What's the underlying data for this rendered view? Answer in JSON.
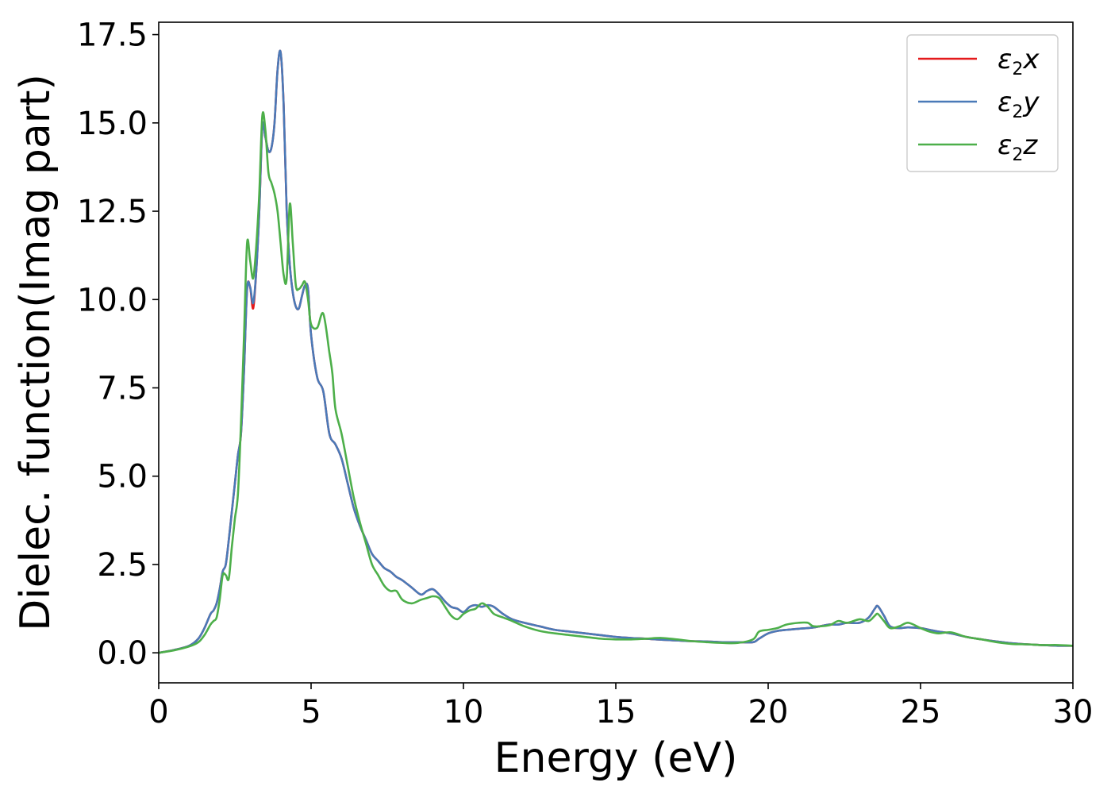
{
  "chart_data": {
    "type": "line",
    "xlabel": "Energy (eV)",
    "ylabel": "Dielec. function(Imag part)",
    "xlim": [
      0,
      30
    ],
    "ylim": [
      -0.85,
      17.85
    ],
    "xticks": [
      0,
      5,
      10,
      15,
      20,
      25,
      30
    ],
    "yticks": [
      0.0,
      2.5,
      5.0,
      7.5,
      10.0,
      12.5,
      15.0,
      17.5
    ],
    "xtick_labels": [
      "0",
      "5",
      "10",
      "15",
      "20",
      "25",
      "30"
    ],
    "ytick_labels": [
      "0.0",
      "2.5",
      "5.0",
      "7.5",
      "10.0",
      "12.5",
      "15.0",
      "17.5"
    ],
    "grid": false,
    "legend_position": "top-right",
    "series": [
      {
        "name": "ε₂x",
        "legend": {
          "base": "ε",
          "sub": "2",
          "var": "x"
        },
        "color": "#e41a1c",
        "x": [
          0,
          0.5,
          1.0,
          1.3,
          1.5,
          1.7,
          1.8,
          1.9,
          2.0,
          2.1,
          2.2,
          2.3,
          2.4,
          2.5,
          2.6,
          2.7,
          2.8,
          2.9,
          3.0,
          3.1,
          3.2,
          3.3,
          3.4,
          3.5,
          3.6,
          3.7,
          3.8,
          3.9,
          4.0,
          4.1,
          4.2,
          4.3,
          4.4,
          4.5,
          4.6,
          4.7,
          4.8,
          4.9,
          5.0,
          5.2,
          5.4,
          5.6,
          5.8,
          6.0,
          6.2,
          6.4,
          6.6,
          6.8,
          7.0,
          7.2,
          7.4,
          7.6,
          7.8,
          8.0,
          8.3,
          8.6,
          8.8,
          9.0,
          9.2,
          9.4,
          9.6,
          9.8,
          10.0,
          10.2,
          10.4,
          10.6,
          10.8,
          11.0,
          11.3,
          11.6,
          12.0,
          12.5,
          13.0,
          13.5,
          14.0,
          14.5,
          15.0,
          15.5,
          16.0,
          16.5,
          17.0,
          17.5,
          18.0,
          18.5,
          19.0,
          19.5,
          19.7,
          20.0,
          20.3,
          20.6,
          21.0,
          21.5,
          22.0,
          22.3,
          22.6,
          23.0,
          23.3,
          23.5,
          23.6,
          23.8,
          24.0,
          24.3,
          24.6,
          25.0,
          25.3,
          25.6,
          26.0,
          26.5,
          27.0,
          27.5,
          28.0,
          28.5,
          29.0,
          29.5,
          30.0
        ],
        "y": [
          0.0,
          0.08,
          0.2,
          0.4,
          0.7,
          1.1,
          1.2,
          1.4,
          1.8,
          2.3,
          2.5,
          3.2,
          4.0,
          4.8,
          5.6,
          6.2,
          8.0,
          10.3,
          10.35,
          9.75,
          10.8,
          12.5,
          14.9,
          14.6,
          14.2,
          14.3,
          15.0,
          16.5,
          17.0,
          15.5,
          12.5,
          11.0,
          10.2,
          9.8,
          9.75,
          10.1,
          10.4,
          10.3,
          9.0,
          7.8,
          7.4,
          6.2,
          5.9,
          5.5,
          4.8,
          4.1,
          3.6,
          3.2,
          2.8,
          2.6,
          2.4,
          2.3,
          2.15,
          2.05,
          1.85,
          1.65,
          1.75,
          1.8,
          1.65,
          1.45,
          1.3,
          1.25,
          1.15,
          1.3,
          1.35,
          1.3,
          1.35,
          1.3,
          1.1,
          0.95,
          0.85,
          0.75,
          0.65,
          0.6,
          0.55,
          0.5,
          0.45,
          0.42,
          0.4,
          0.37,
          0.35,
          0.33,
          0.32,
          0.3,
          0.3,
          0.3,
          0.4,
          0.55,
          0.62,
          0.65,
          0.68,
          0.72,
          0.8,
          0.8,
          0.85,
          0.85,
          1.0,
          1.25,
          1.32,
          1.05,
          0.75,
          0.7,
          0.72,
          0.7,
          0.65,
          0.6,
          0.55,
          0.45,
          0.38,
          0.32,
          0.27,
          0.24,
          0.22,
          0.2,
          0.2
        ]
      },
      {
        "name": "ε₂y",
        "legend": {
          "base": "ε",
          "sub": "2",
          "var": "y"
        },
        "color": "#4a7ab8",
        "x": [
          0,
          0.5,
          1.0,
          1.3,
          1.5,
          1.7,
          1.8,
          1.9,
          2.0,
          2.1,
          2.2,
          2.3,
          2.4,
          2.5,
          2.6,
          2.7,
          2.8,
          2.9,
          3.0,
          3.1,
          3.2,
          3.3,
          3.4,
          3.5,
          3.6,
          3.7,
          3.8,
          3.9,
          4.0,
          4.1,
          4.2,
          4.3,
          4.4,
          4.5,
          4.6,
          4.7,
          4.8,
          4.9,
          5.0,
          5.2,
          5.4,
          5.6,
          5.8,
          6.0,
          6.2,
          6.4,
          6.6,
          6.8,
          7.0,
          7.2,
          7.4,
          7.6,
          7.8,
          8.0,
          8.3,
          8.6,
          8.8,
          9.0,
          9.2,
          9.4,
          9.6,
          9.8,
          10.0,
          10.2,
          10.4,
          10.6,
          10.8,
          11.0,
          11.3,
          11.6,
          12.0,
          12.5,
          13.0,
          13.5,
          14.0,
          14.5,
          15.0,
          15.5,
          16.0,
          16.5,
          17.0,
          17.5,
          18.0,
          18.5,
          19.0,
          19.5,
          19.7,
          20.0,
          20.3,
          20.6,
          21.0,
          21.5,
          22.0,
          22.3,
          22.6,
          23.0,
          23.3,
          23.5,
          23.6,
          23.8,
          24.0,
          24.3,
          24.6,
          25.0,
          25.3,
          25.6,
          26.0,
          26.5,
          27.0,
          27.5,
          28.0,
          28.5,
          29.0,
          29.5,
          30.0
        ],
        "y": [
          0.0,
          0.08,
          0.2,
          0.4,
          0.7,
          1.1,
          1.2,
          1.4,
          1.8,
          2.3,
          2.5,
          3.2,
          4.0,
          4.8,
          5.6,
          6.2,
          8.0,
          10.3,
          10.35,
          9.9,
          10.8,
          12.5,
          14.9,
          14.6,
          14.2,
          14.3,
          15.0,
          16.5,
          17.0,
          15.5,
          12.5,
          11.0,
          10.2,
          9.8,
          9.75,
          10.1,
          10.4,
          10.3,
          9.0,
          7.8,
          7.4,
          6.2,
          5.9,
          5.5,
          4.8,
          4.1,
          3.6,
          3.2,
          2.8,
          2.6,
          2.4,
          2.3,
          2.15,
          2.05,
          1.85,
          1.65,
          1.75,
          1.8,
          1.65,
          1.45,
          1.3,
          1.25,
          1.15,
          1.3,
          1.35,
          1.3,
          1.35,
          1.3,
          1.1,
          0.95,
          0.85,
          0.75,
          0.65,
          0.6,
          0.55,
          0.5,
          0.45,
          0.42,
          0.4,
          0.37,
          0.35,
          0.33,
          0.32,
          0.3,
          0.3,
          0.3,
          0.4,
          0.55,
          0.62,
          0.65,
          0.68,
          0.72,
          0.8,
          0.8,
          0.85,
          0.85,
          1.0,
          1.25,
          1.32,
          1.05,
          0.75,
          0.7,
          0.72,
          0.7,
          0.65,
          0.6,
          0.55,
          0.45,
          0.38,
          0.32,
          0.27,
          0.24,
          0.22,
          0.2,
          0.2
        ]
      },
      {
        "name": "ε₂z",
        "legend": {
          "base": "ε",
          "sub": "2",
          "var": "z"
        },
        "color": "#4daf4a",
        "x": [
          0,
          0.5,
          1.0,
          1.3,
          1.5,
          1.7,
          1.8,
          1.9,
          2.0,
          2.1,
          2.2,
          2.3,
          2.4,
          2.5,
          2.6,
          2.7,
          2.8,
          2.9,
          3.0,
          3.1,
          3.2,
          3.3,
          3.4,
          3.5,
          3.6,
          3.7,
          3.8,
          3.9,
          4.0,
          4.1,
          4.2,
          4.3,
          4.4,
          4.5,
          4.6,
          4.7,
          4.8,
          4.9,
          5.0,
          5.2,
          5.4,
          5.6,
          5.7,
          5.8,
          6.0,
          6.2,
          6.4,
          6.6,
          6.8,
          7.0,
          7.2,
          7.4,
          7.6,
          7.8,
          8.0,
          8.3,
          8.6,
          8.8,
          9.0,
          9.2,
          9.4,
          9.6,
          9.8,
          10.0,
          10.2,
          10.4,
          10.6,
          10.8,
          11.0,
          11.3,
          11.6,
          12.0,
          12.5,
          13.0,
          13.5,
          14.0,
          14.5,
          15.0,
          15.5,
          16.0,
          16.5,
          17.0,
          17.5,
          18.0,
          18.5,
          19.0,
          19.5,
          19.7,
          20.0,
          20.3,
          20.6,
          21.0,
          21.3,
          21.5,
          22.0,
          22.3,
          22.6,
          23.0,
          23.3,
          23.5,
          23.6,
          23.8,
          24.0,
          24.3,
          24.6,
          25.0,
          25.3,
          25.6,
          26.0,
          26.5,
          27.0,
          27.5,
          28.0,
          28.5,
          29.0,
          29.5,
          30.0
        ],
        "y": [
          0.0,
          0.07,
          0.18,
          0.3,
          0.5,
          0.8,
          0.9,
          1.0,
          1.5,
          2.2,
          2.2,
          2.1,
          3.0,
          3.8,
          4.5,
          6.5,
          9.0,
          11.6,
          11.1,
          10.6,
          11.5,
          13.0,
          15.2,
          14.8,
          13.6,
          13.3,
          13.0,
          12.5,
          11.6,
          10.7,
          10.6,
          12.7,
          11.6,
          10.4,
          10.3,
          10.4,
          10.5,
          10.0,
          9.3,
          9.2,
          9.6,
          8.5,
          7.9,
          6.9,
          6.2,
          5.3,
          4.4,
          3.7,
          3.1,
          2.5,
          2.2,
          1.9,
          1.75,
          1.75,
          1.5,
          1.4,
          1.5,
          1.55,
          1.6,
          1.55,
          1.3,
          1.05,
          0.95,
          1.1,
          1.2,
          1.25,
          1.4,
          1.3,
          1.1,
          1.0,
          0.9,
          0.75,
          0.62,
          0.55,
          0.5,
          0.45,
          0.4,
          0.38,
          0.38,
          0.4,
          0.42,
          0.38,
          0.33,
          0.3,
          0.28,
          0.28,
          0.38,
          0.6,
          0.65,
          0.7,
          0.8,
          0.85,
          0.85,
          0.75,
          0.78,
          0.9,
          0.85,
          0.95,
          0.9,
          1.05,
          1.1,
          0.9,
          0.7,
          0.75,
          0.85,
          0.7,
          0.6,
          0.55,
          0.58,
          0.45,
          0.38,
          0.3,
          0.25,
          0.24,
          0.22,
          0.22,
          0.2
        ]
      }
    ]
  }
}
